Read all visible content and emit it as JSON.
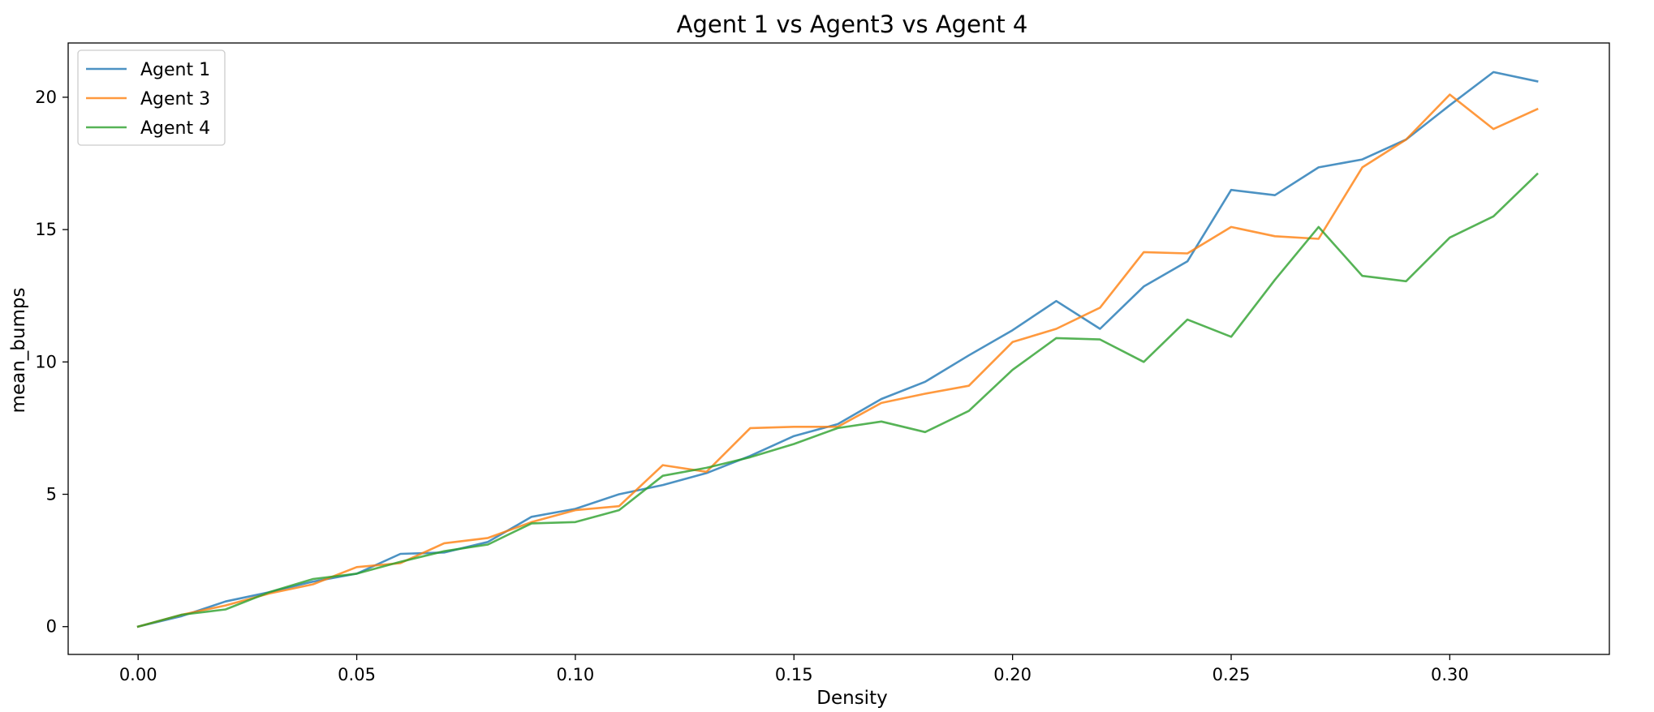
{
  "chart_data": {
    "type": "line",
    "title": "Agent 1 vs Agent3 vs Agent 4",
    "xlabel": "Density",
    "ylabel": "mean_bumps",
    "xlim": [
      -0.016,
      0.3365
    ],
    "ylim": [
      -1.05,
      22.05
    ],
    "xticks": [
      0.0,
      0.05,
      0.1,
      0.15,
      0.2,
      0.25,
      0.3
    ],
    "xtick_labels": [
      "0.00",
      "0.05",
      "0.10",
      "0.15",
      "0.20",
      "0.25",
      "0.30"
    ],
    "yticks": [
      0,
      5,
      10,
      15,
      20
    ],
    "ytick_labels": [
      "0",
      "5",
      "10",
      "15",
      "20"
    ],
    "grid": false,
    "legend_position": "top-left",
    "x": [
      0.0,
      0.01,
      0.02,
      0.03,
      0.04,
      0.05,
      0.06,
      0.07,
      0.08,
      0.09,
      0.1,
      0.11,
      0.12,
      0.13,
      0.14,
      0.15,
      0.16,
      0.17,
      0.18,
      0.19,
      0.2,
      0.21,
      0.22,
      0.23,
      0.24,
      0.25,
      0.26,
      0.27,
      0.28,
      0.29,
      0.3,
      0.31,
      0.32
    ],
    "series": [
      {
        "name": "Agent 1",
        "color": "#1f77b4",
        "values": [
          0.0,
          0.4,
          0.95,
          1.3,
          1.7,
          2.0,
          2.75,
          2.8,
          3.2,
          4.15,
          4.45,
          5.0,
          5.35,
          5.8,
          6.45,
          7.2,
          7.65,
          8.6,
          9.25,
          10.25,
          11.2,
          12.3,
          11.25,
          12.85,
          13.8,
          16.5,
          16.3,
          17.35,
          17.65,
          18.4,
          19.7,
          20.95,
          20.6
        ]
      },
      {
        "name": "Agent 3",
        "color": "#ff7f0e",
        "values": [
          0.0,
          0.45,
          0.8,
          1.25,
          1.6,
          2.25,
          2.4,
          3.15,
          3.35,
          3.95,
          4.4,
          4.55,
          6.1,
          5.85,
          7.5,
          7.55,
          7.55,
          8.45,
          8.8,
          9.1,
          10.75,
          11.25,
          12.05,
          14.15,
          14.1,
          15.1,
          14.75,
          14.65,
          17.35,
          18.4,
          20.1,
          18.8,
          19.55
        ]
      },
      {
        "name": "Agent 4",
        "color": "#2ca02c",
        "values": [
          0.0,
          0.45,
          0.65,
          1.3,
          1.8,
          2.0,
          2.45,
          2.85,
          3.1,
          3.9,
          3.95,
          4.4,
          5.7,
          6.0,
          6.4,
          6.9,
          7.5,
          7.75,
          7.35,
          8.15,
          9.7,
          10.9,
          10.85,
          10.0,
          11.6,
          10.95,
          13.1,
          15.1,
          13.25,
          13.05,
          14.7,
          15.5,
          17.1
        ]
      }
    ]
  }
}
